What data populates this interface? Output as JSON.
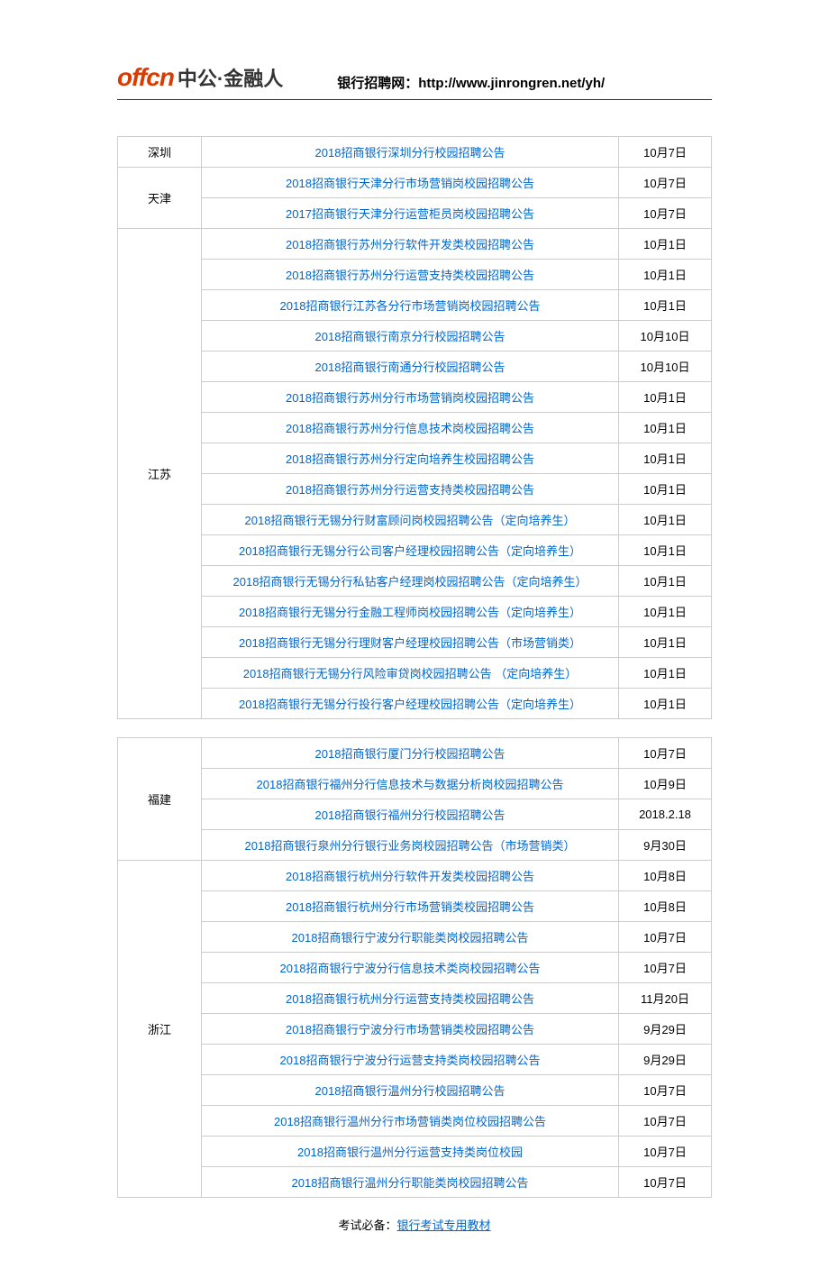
{
  "header": {
    "logo_en": "offcn",
    "logo_cn": "中公·金融人",
    "site_label": "银行招聘网：",
    "site_url": "http://www.jinrongren.net/yh/"
  },
  "colors": {
    "link_color": "#0066cc",
    "text_color": "#000000",
    "border_color": "#cccccc",
    "logo_orange": "#d93b00"
  },
  "table1": {
    "groups": [
      {
        "region": "深圳",
        "rows": [
          {
            "title": "2018招商银行深圳分行校园招聘公告",
            "date": "10月7日"
          }
        ]
      },
      {
        "region": "天津",
        "rows": [
          {
            "title": "2018招商银行天津分行市场营销岗校园招聘公告",
            "date": "10月7日"
          },
          {
            "title": "2017招商银行天津分行运营柜员岗校园招聘公告",
            "date": "10月7日"
          }
        ]
      },
      {
        "region": "江苏",
        "rows": [
          {
            "title": "2018招商银行苏州分行软件开发类校园招聘公告",
            "date": "10月1日"
          },
          {
            "title": "2018招商银行苏州分行运营支持类校园招聘公告",
            "date": "10月1日"
          },
          {
            "title": "2018招商银行江苏各分行市场营销岗校园招聘公告",
            "date": "10月1日"
          },
          {
            "title": "2018招商银行南京分行校园招聘公告",
            "date": "10月10日"
          },
          {
            "title": "2018招商银行南通分行校园招聘公告",
            "date": "10月10日"
          },
          {
            "title": "2018招商银行苏州分行市场营销岗校园招聘公告",
            "date": "10月1日"
          },
          {
            "title": "2018招商银行苏州分行信息技术岗校园招聘公告",
            "date": "10月1日"
          },
          {
            "title": "2018招商银行苏州分行定向培养生校园招聘公告",
            "date": "10月1日"
          },
          {
            "title": "2018招商银行苏州分行运营支持类校园招聘公告",
            "date": "10月1日"
          },
          {
            "title": "2018招商银行无锡分行财富顾问岗校园招聘公告（定向培养生）",
            "date": "10月1日"
          },
          {
            "title": "2018招商银行无锡分行公司客户经理校园招聘公告（定向培养生）",
            "date": "10月1日"
          },
          {
            "title": "2018招商银行无锡分行私钻客户经理岗校园招聘公告（定向培养生）",
            "date": "10月1日"
          },
          {
            "title": "2018招商银行无锡分行金融工程师岗校园招聘公告（定向培养生）",
            "date": "10月1日"
          },
          {
            "title": "2018招商银行无锡分行理财客户经理校园招聘公告（市场营销类）",
            "date": "10月1日"
          },
          {
            "title": "2018招商银行无锡分行风险审贷岗校园招聘公告  （定向培养生）",
            "date": "10月1日"
          },
          {
            "title": "2018招商银行无锡分行投行客户经理校园招聘公告（定向培养生）",
            "date": "10月1日"
          }
        ]
      }
    ]
  },
  "table2": {
    "groups": [
      {
        "region": "福建",
        "rows": [
          {
            "title": "2018招商银行厦门分行校园招聘公告",
            "date": "10月7日"
          },
          {
            "title": "2018招商银行福州分行信息技术与数据分析岗校园招聘公告",
            "date": "10月9日"
          },
          {
            "title": "2018招商银行福州分行校园招聘公告",
            "date": "2018.2.18"
          },
          {
            "title": "2018招商银行泉州分行银行业务岗校园招聘公告（市场营销类）",
            "date": "9月30日"
          }
        ]
      },
      {
        "region": "浙江",
        "rows": [
          {
            "title": "2018招商银行杭州分行软件开发类校园招聘公告",
            "date": "10月8日"
          },
          {
            "title": "2018招商银行杭州分行市场营销类校园招聘公告",
            "date": "10月8日"
          },
          {
            "title": "2018招商银行宁波分行职能类岗校园招聘公告",
            "date": "10月7日"
          },
          {
            "title": "2018招商银行宁波分行信息技术类岗校园招聘公告",
            "date": "10月7日"
          },
          {
            "title": "2018招商银行杭州分行运营支持类校园招聘公告",
            "date": "11月20日"
          },
          {
            "title": "2018招商银行宁波分行市场营销类校园招聘公告",
            "date": "9月29日"
          },
          {
            "title": "2018招商银行宁波分行运营支持类岗校园招聘公告",
            "date": "9月29日"
          },
          {
            "title": "2018招商银行温州分行校园招聘公告",
            "date": "10月7日"
          },
          {
            "title": "2018招商银行温州分行市场营销类岗位校园招聘公告",
            "date": "10月7日"
          },
          {
            "title": "2018招商银行温州分行运营支持类岗位校园",
            "date": "10月7日"
          },
          {
            "title": "2018招商银行温州分行职能类岗校园招聘公告",
            "date": "10月7日"
          }
        ]
      }
    ]
  },
  "footer": {
    "label": "考试必备：",
    "link_text": "银行考试专用教材"
  }
}
